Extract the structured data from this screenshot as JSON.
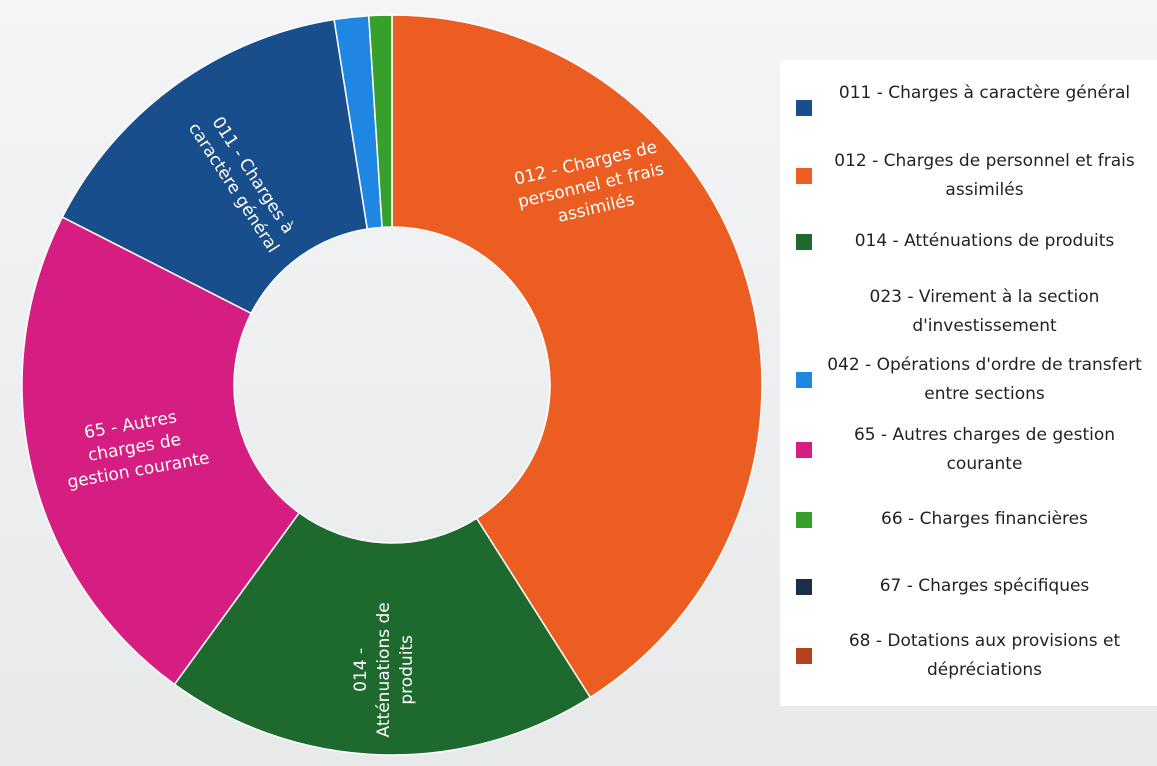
{
  "chart_data": {
    "type": "pie",
    "variant": "donut",
    "title": "",
    "legend_position": "right",
    "slices": [
      {
        "code": "012",
        "label": "012 - Charges de personnel et frais assimilés",
        "value": 41.0,
        "color": "#ec5d22",
        "segment_label": "012 - Charges de personnel et frais assimilés"
      },
      {
        "code": "014",
        "label": "014 - Atténuations de produits",
        "value": 19.0,
        "color": "#1e6a2e",
        "segment_label": "014 - Atténuations de produits"
      },
      {
        "code": "65",
        "label": "65 - Autres charges de gestion courante",
        "value": 22.5,
        "color": "#d61e82",
        "segment_label": "65 - Autres charges de gestion courante"
      },
      {
        "code": "011",
        "label": "011 - Charges à caractère général",
        "value": 15.0,
        "color": "#184e8c",
        "segment_label": "011 - Charges à caractère général"
      },
      {
        "code": "042",
        "label": "042 - Opérations d'ordre de transfert entre sections",
        "value": 1.5,
        "color": "#1f86e2",
        "segment_label": ""
      },
      {
        "code": "66",
        "label": "66 - Charges financières",
        "value": 1.0,
        "color": "#36a02a",
        "segment_label": ""
      }
    ],
    "legend": [
      {
        "label": "011 - Charges à caractère général",
        "color": "#184e8c"
      },
      {
        "label": "012 - Charges de personnel et frais assimilés",
        "color": "#ec5d22"
      },
      {
        "label": "014 - Atténuations de produits",
        "color": "#1e6a2e"
      },
      {
        "label": "023 - Virement à la section d'investissement",
        "color": "#ffffff"
      },
      {
        "label": "042 - Opérations d'ordre de transfert entre sections",
        "color": "#1f86e2"
      },
      {
        "label": "65 - Autres charges de gestion courante",
        "color": "#d61e82"
      },
      {
        "label": "66 - Charges financières",
        "color": "#36a02a"
      },
      {
        "label": "67 - Charges spécifiques",
        "color": "#1b2e4a"
      },
      {
        "label": "68 - Dotations aux provisions et dépréciations",
        "color": "#b5421c"
      }
    ]
  }
}
